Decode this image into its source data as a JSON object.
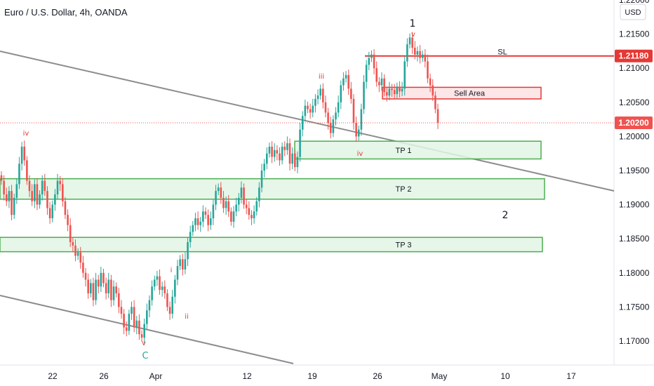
{
  "header": {
    "title": "Euro / U.S. Dollar, 4h, OANDA"
  },
  "price_axis": {
    "unit": "USD"
  },
  "chart_data": {
    "type": "candlestick",
    "title": "Euro / U.S. Dollar, 4h, OANDA",
    "ylim": [
      1.1665,
      1.22
    ],
    "y_ticks": [
      "1.22000",
      "1.21500",
      "1.21000",
      "1.20500",
      "1.20000",
      "1.19500",
      "1.19000",
      "1.18500",
      "1.18000",
      "1.17500",
      "1.17000"
    ],
    "x_ticks": [
      "22",
      "26",
      "Apr",
      "12",
      "19",
      "26",
      "May",
      "10",
      "17"
    ],
    "price_markers": [
      {
        "label": "1.21180",
        "value": 1.2118
      },
      {
        "label": "1.20200",
        "value": 1.202
      }
    ],
    "horizontal_levels": [
      {
        "label": "SL",
        "value": 1.2118
      },
      {
        "label": "",
        "value": 1.202
      }
    ],
    "zones": [
      {
        "label": "Sell Area",
        "top": 1.2072,
        "bottom": 1.2055
      },
      {
        "label": "TP 1",
        "top": 1.1993,
        "bottom": 1.1967
      },
      {
        "label": "TP 2",
        "top": 1.1938,
        "bottom": 1.1908
      },
      {
        "label": "TP 3",
        "top": 1.1852,
        "bottom": 1.1831
      }
    ],
    "wave_labels": [
      {
        "text": "1",
        "color": "#131722"
      },
      {
        "text": "v",
        "color": "#e53935"
      },
      {
        "text": "iii",
        "color": "#e53935"
      },
      {
        "text": "iv",
        "color": "#e53935"
      },
      {
        "text": "iv",
        "color": "#e53935"
      },
      {
        "text": "i",
        "color": "#e53935"
      },
      {
        "text": "ii",
        "color": "#e53935"
      },
      {
        "text": "v",
        "color": "#e53935"
      },
      {
        "text": "C",
        "color": "#26a69a"
      },
      {
        "text": "2",
        "color": "#131722"
      }
    ],
    "series": [
      {
        "name": "EUR/USD",
        "color_up": "#26a69a",
        "color_down": "#ef5350",
        "closes": [
          1.1935,
          1.1915,
          1.1905,
          1.192,
          1.1885,
          1.191,
          1.193,
          1.196,
          1.1985,
          1.1965,
          1.1935,
          1.192,
          1.1905,
          1.193,
          1.19,
          1.1915,
          1.1935,
          1.192,
          1.1895,
          1.188,
          1.19,
          1.1915,
          1.1935,
          1.193,
          1.1905,
          1.1885,
          1.187,
          1.1845,
          1.184,
          1.1825,
          1.183,
          1.1815,
          1.18,
          1.179,
          1.177,
          1.1785,
          1.176,
          1.179,
          1.178,
          1.18,
          1.1785,
          1.177,
          1.179,
          1.176,
          1.178,
          1.177,
          1.175,
          1.174,
          1.172,
          1.1715,
          1.174,
          1.175,
          1.172,
          1.173,
          1.171,
          1.1705,
          1.1725,
          1.1745,
          1.176,
          1.178,
          1.179,
          1.1795,
          1.1775,
          1.178,
          1.177,
          1.175,
          1.174,
          1.1765,
          1.179,
          1.181,
          1.182,
          1.1805,
          1.182,
          1.1845,
          1.186,
          1.187,
          1.188,
          1.187,
          1.1875,
          1.189,
          1.1885,
          1.187,
          1.188,
          1.19,
          1.192,
          1.1925,
          1.191,
          1.1895,
          1.1905,
          1.189,
          1.1875,
          1.189,
          1.19,
          1.191,
          1.1925,
          1.19,
          1.1895,
          1.1885,
          1.188,
          1.189,
          1.1905,
          1.1925,
          1.195,
          1.196,
          1.1975,
          1.1985,
          1.197,
          1.198,
          1.1975,
          1.1965,
          1.1985,
          1.198,
          1.199,
          1.196,
          1.1975,
          1.1955,
          1.197,
          1.201,
          1.203,
          1.2045,
          1.204,
          1.2035,
          1.2045,
          1.2055,
          1.206,
          1.207,
          1.205,
          1.2035,
          1.202,
          1.2005,
          1.2025,
          1.2035,
          1.205,
          1.2075,
          1.2085,
          1.209,
          1.207,
          1.2055,
          1.202,
          1.2,
          1.201,
          1.204,
          1.208,
          1.2105,
          1.2115,
          1.212,
          1.21,
          1.208,
          1.2075,
          1.2085,
          1.2065,
          1.206,
          1.207,
          1.2068,
          1.2062,
          1.2073,
          1.2066,
          1.207,
          1.211,
          1.2135,
          1.2145,
          1.213,
          1.212,
          1.2125,
          1.2115,
          1.212,
          1.211,
          1.2085,
          1.2075,
          1.206,
          1.204,
          1.202
        ]
      }
    ]
  }
}
